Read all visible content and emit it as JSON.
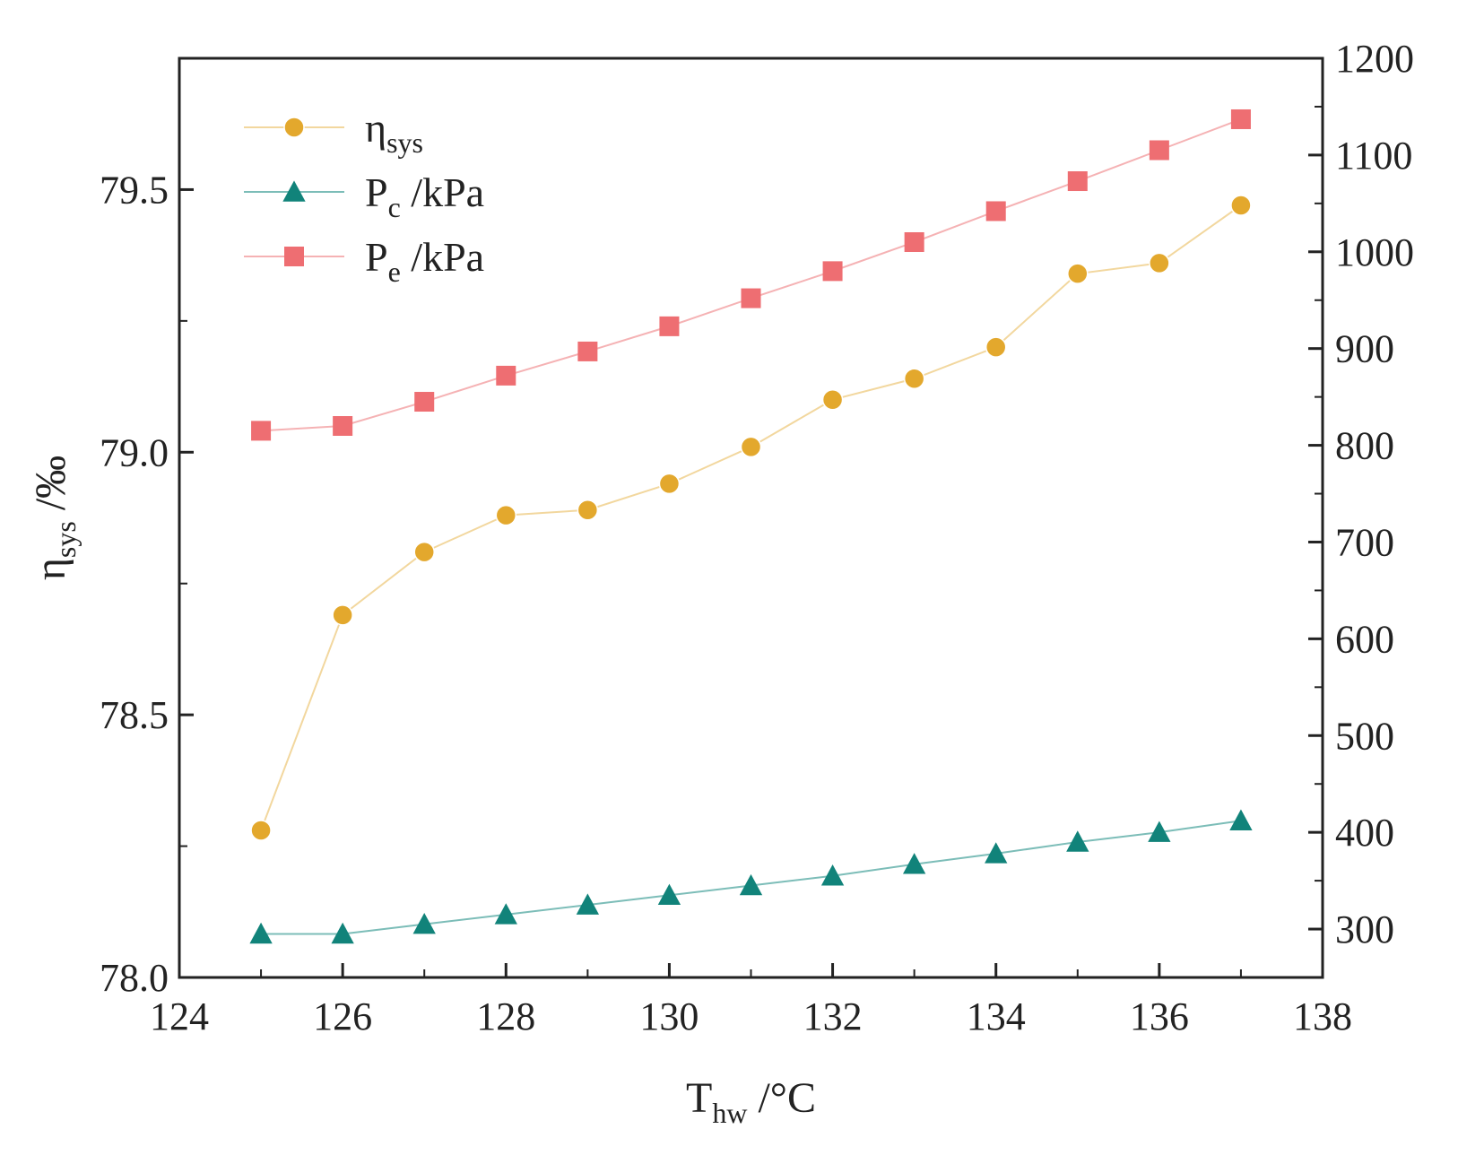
{
  "chart_data": {
    "type": "line",
    "x": [
      125,
      126,
      127,
      128,
      129,
      130,
      131,
      132,
      133,
      134,
      135,
      136,
      137
    ],
    "xlim": [
      124,
      138
    ],
    "xticks": [
      124,
      126,
      128,
      130,
      132,
      134,
      136,
      138
    ],
    "xtick_labels": [
      "124",
      "126",
      "128",
      "130",
      "132",
      "134",
      "136",
      "138"
    ],
    "xlabel": {
      "main": "T",
      "sub": "hw",
      "tail": " /°C"
    },
    "ylabel_left": {
      "main": "η",
      "sub": "sys",
      "tail": " /‰"
    },
    "ylim_left": [
      78.0,
      79.75
    ],
    "yticks_left": [
      78.0,
      78.5,
      79.0,
      79.5
    ],
    "ytick_labels_left": [
      "78.0",
      "78.5",
      "79.0",
      "79.5"
    ],
    "ylim_right": [
      250,
      1200
    ],
    "yticks_right": [
      300,
      400,
      500,
      600,
      700,
      800,
      900,
      1000,
      1100,
      1200
    ],
    "ytick_labels_right": [
      "300",
      "400",
      "500",
      "600",
      "700",
      "800",
      "900",
      "1000",
      "1100",
      "1200"
    ],
    "legend_position": "top-left",
    "grid": false,
    "series": [
      {
        "name": "η",
        "legend": {
          "main": "η",
          "sub": "sys",
          "tail": ""
        },
        "axis": "left",
        "marker": "circle",
        "color": "#E3A82D",
        "line_color": "#F2D79E",
        "values": [
          78.28,
          78.69,
          78.81,
          78.88,
          78.89,
          78.94,
          79.01,
          79.1,
          79.14,
          79.2,
          79.34,
          79.36,
          79.47
        ]
      },
      {
        "name": "P",
        "legend": {
          "main": "P",
          "sub": "c",
          "tail": " /kPa"
        },
        "axis": "right",
        "marker": "triangle",
        "color": "#11837A",
        "line_color": "#7CBDB8",
        "values": [
          295,
          295,
          305,
          315,
          325,
          335,
          345,
          355,
          367,
          378,
          390,
          400,
          412
        ]
      },
      {
        "name": "P",
        "legend": {
          "main": "P",
          "sub": "e",
          "tail": " /kPa"
        },
        "axis": "right",
        "marker": "square",
        "color": "#EE6E72",
        "line_color": "#F5B2B4",
        "values": [
          815,
          820,
          845,
          872,
          897,
          923,
          952,
          980,
          1010,
          1042,
          1073,
          1105,
          1137
        ]
      }
    ]
  }
}
